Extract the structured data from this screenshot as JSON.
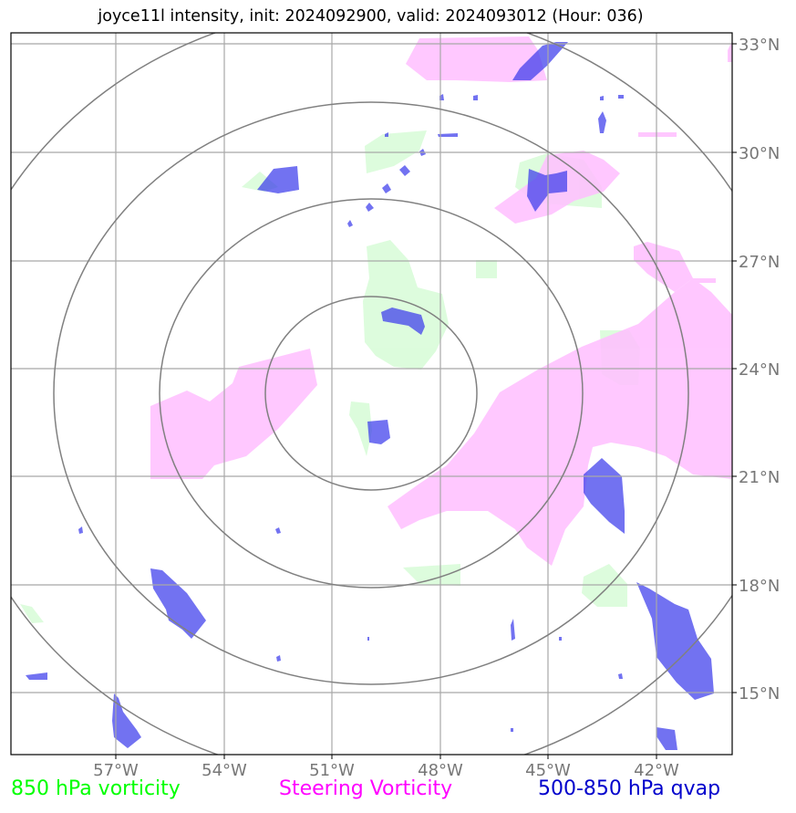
{
  "title": "joyce11l intensity, init: 2024092900, valid: 2024093012 (Hour: 036)",
  "map": {
    "lon_ticks": [
      "57°W",
      "54°W",
      "51°W",
      "48°W",
      "45°W",
      "42°W"
    ],
    "lat_ticks": [
      "33°N",
      "30°N",
      "27°N",
      "24°N",
      "21°N",
      "18°N",
      "15°N"
    ],
    "range_rings": 4,
    "colors": {
      "grid": "#a8a8a8",
      "rings": "#808080",
      "vorticity_850": "#d9fcd9",
      "steering_vorticity": "#ffc0ff",
      "qvap": "#4b4bf0"
    }
  },
  "legend": [
    {
      "label": "850 hPa vorticity",
      "color": "#00ff00"
    },
    {
      "label": "Steering Vorticity",
      "color": "#ff00ff"
    },
    {
      "label": "500-850 hPa qvap",
      "color": "#0000cc"
    }
  ]
}
